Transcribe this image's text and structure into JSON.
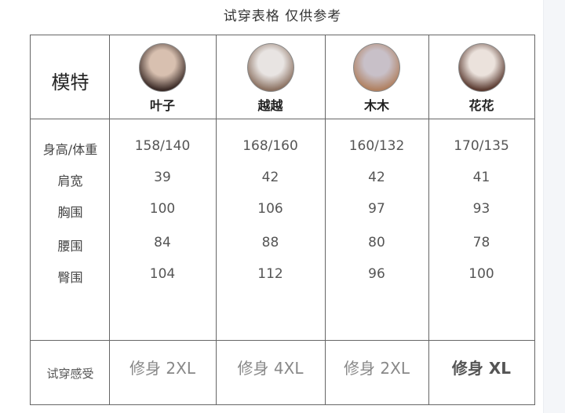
{
  "title": "试穿表格 仅供参考",
  "header_label": "模特",
  "models": [
    {
      "name": "叶子",
      "avatar_colors": [
        "#d8c0b0",
        "#3a2a26"
      ]
    },
    {
      "name": "越越",
      "avatar_colors": [
        "#e8e4e2",
        "#8a7060"
      ]
    },
    {
      "name": "木木",
      "avatar_colors": [
        "#c8c0c8",
        "#b08060"
      ]
    },
    {
      "name": "花花",
      "avatar_colors": [
        "#ebe2dc",
        "#5a3a30"
      ]
    }
  ],
  "rows": [
    {
      "label": "身高/体重",
      "values": [
        "158/140",
        "168/160",
        "160/132",
        "170/135"
      ]
    },
    {
      "label": "肩宽",
      "values": [
        "39",
        "42",
        "42",
        "41"
      ]
    },
    {
      "label": "胸围",
      "values": [
        "100",
        "106",
        "97",
        "93"
      ]
    },
    {
      "label": "腰围",
      "values": [
        "84",
        "88",
        "80",
        "78"
      ]
    },
    {
      "label": "臀围",
      "values": [
        "104",
        "112",
        "96",
        "100"
      ]
    }
  ],
  "fit_label": "试穿感受",
  "fits": [
    "修身 2XL",
    "修身 4XL",
    "修身 2XL",
    "修身 XL"
  ]
}
